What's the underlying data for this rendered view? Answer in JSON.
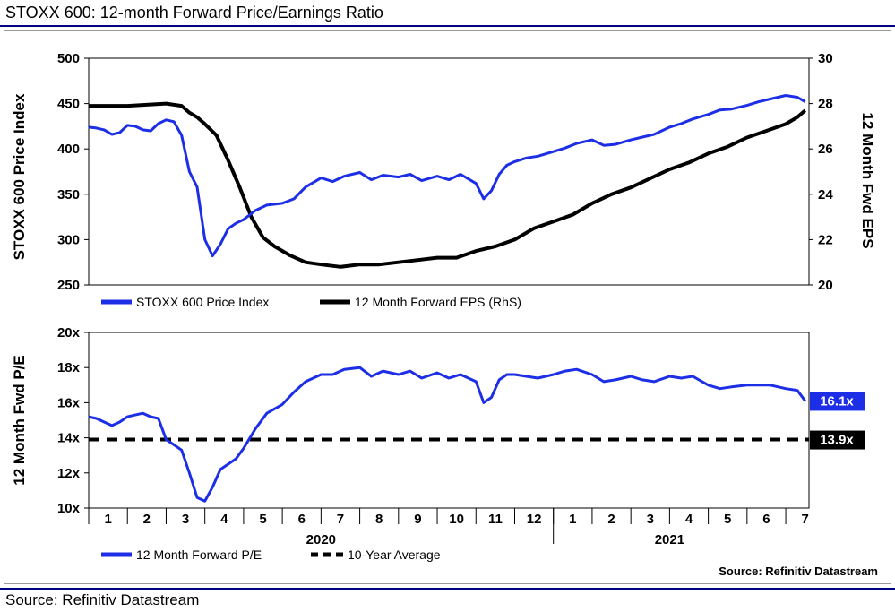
{
  "figure": {
    "title": "STOXX 600: 12-month Forward Price/Earnings Ratio",
    "source": "Source: Refinitiv Datastream",
    "inner_source": "Source: Refinitiv Datastream"
  },
  "colors": {
    "blue": "#1c2ee6",
    "black": "#000000",
    "rule": "#000080",
    "frame": "#999999"
  },
  "chart_data": [
    {
      "type": "line",
      "x_unit": "month index (0 = start of Jan 2020)",
      "y_left": {
        "label": "STOXX 600 Price Index",
        "ylim": [
          250,
          500
        ],
        "ticks": [
          "250",
          "300",
          "350",
          "400",
          "450",
          "500"
        ]
      },
      "y_right": {
        "label": "12 Month Fwd EPS",
        "ylim": [
          20,
          30
        ],
        "ticks": [
          "20",
          "22",
          "24",
          "26",
          "28",
          "30"
        ]
      },
      "grid": false,
      "legend": "bottom",
      "series": [
        {
          "name": "STOXX 600 Price Index",
          "axis": "left",
          "color": "#1c2ee6",
          "x": [
            0,
            0.2,
            0.4,
            0.6,
            0.8,
            1.0,
            1.2,
            1.4,
            1.6,
            1.8,
            2.0,
            2.2,
            2.4,
            2.6,
            2.8,
            3.0,
            3.2,
            3.4,
            3.6,
            3.8,
            4.0,
            4.3,
            4.6,
            5.0,
            5.3,
            5.6,
            6.0,
            6.3,
            6.6,
            7.0,
            7.3,
            7.6,
            8.0,
            8.3,
            8.6,
            9.0,
            9.3,
            9.6,
            10.0,
            10.2,
            10.4,
            10.6,
            10.8,
            11.0,
            11.3,
            11.6,
            12.0,
            12.3,
            12.6,
            13.0,
            13.3,
            13.6,
            14.0,
            14.3,
            14.6,
            15.0,
            15.3,
            15.6,
            16.0,
            16.3,
            16.6,
            17.0,
            17.3,
            17.6,
            18.0,
            18.3,
            18.5
          ],
          "values": [
            424,
            423,
            421,
            416,
            418,
            426,
            425,
            421,
            420,
            428,
            432,
            430,
            415,
            375,
            358,
            300,
            282,
            295,
            312,
            318,
            322,
            332,
            338,
            340,
            345,
            358,
            368,
            364,
            370,
            374,
            366,
            371,
            369,
            372,
            365,
            370,
            366,
            372,
            362,
            345,
            354,
            372,
            382,
            386,
            390,
            392,
            397,
            401,
            406,
            410,
            404,
            405,
            410,
            413,
            416,
            424,
            428,
            433,
            438,
            443,
            444,
            448,
            452,
            455,
            459,
            457,
            452
          ]
        },
        {
          "name": "12 Month Forward EPS (RhS)",
          "axis": "right",
          "color": "#000000",
          "x": [
            0,
            0.5,
            1.0,
            1.5,
            2.0,
            2.4,
            2.6,
            2.8,
            3.0,
            3.3,
            3.6,
            3.9,
            4.2,
            4.5,
            4.8,
            5.2,
            5.6,
            6.0,
            6.5,
            7.0,
            7.5,
            8.0,
            8.5,
            9.0,
            9.5,
            10.0,
            10.5,
            11.0,
            11.5,
            12.0,
            12.5,
            13.0,
            13.5,
            14.0,
            14.5,
            15.0,
            15.5,
            16.0,
            16.5,
            17.0,
            17.5,
            18.0,
            18.3,
            18.5
          ],
          "values": [
            27.9,
            27.9,
            27.9,
            27.95,
            28.0,
            27.9,
            27.6,
            27.4,
            27.1,
            26.6,
            25.5,
            24.3,
            23.0,
            22.1,
            21.7,
            21.3,
            21.0,
            20.9,
            20.8,
            20.9,
            20.9,
            21.0,
            21.1,
            21.2,
            21.2,
            21.5,
            21.7,
            22.0,
            22.5,
            22.8,
            23.1,
            23.6,
            24.0,
            24.3,
            24.7,
            25.1,
            25.4,
            25.8,
            26.1,
            26.5,
            26.8,
            27.1,
            27.4,
            27.7
          ]
        }
      ]
    },
    {
      "type": "line",
      "x_unit": "month index (0 = start of Jan 2020)",
      "y_left": {
        "label": "12 Month Fwd P/E",
        "ylim": [
          10,
          20
        ],
        "ticks": [
          "10x",
          "12x",
          "14x",
          "16x",
          "18x",
          "20x"
        ]
      },
      "x_ticks": [
        "1",
        "2",
        "3",
        "4",
        "5",
        "6",
        "7",
        "8",
        "9",
        "10",
        "11",
        "12",
        "1",
        "2",
        "3",
        "4",
        "5",
        "6",
        "7"
      ],
      "x_years": [
        "2020",
        "2021"
      ],
      "grid": false,
      "legend": "bottom",
      "series": [
        {
          "name": "12 Month Forward P/E",
          "color": "#1c2ee6",
          "x": [
            0,
            0.2,
            0.4,
            0.6,
            0.8,
            1.0,
            1.2,
            1.4,
            1.6,
            1.8,
            2.0,
            2.2,
            2.4,
            2.6,
            2.8,
            3.0,
            3.2,
            3.4,
            3.6,
            3.8,
            4.0,
            4.3,
            4.6,
            5.0,
            5.3,
            5.6,
            6.0,
            6.3,
            6.6,
            7.0,
            7.3,
            7.6,
            8.0,
            8.3,
            8.6,
            9.0,
            9.3,
            9.6,
            10.0,
            10.2,
            10.4,
            10.6,
            10.8,
            11.0,
            11.3,
            11.6,
            12.0,
            12.3,
            12.6,
            13.0,
            13.3,
            13.6,
            14.0,
            14.3,
            14.6,
            15.0,
            15.3,
            15.6,
            16.0,
            16.3,
            16.6,
            17.0,
            17.3,
            17.6,
            18.0,
            18.3,
            18.5
          ],
          "values": [
            15.2,
            15.1,
            14.9,
            14.7,
            14.9,
            15.2,
            15.3,
            15.4,
            15.2,
            15.1,
            13.9,
            13.6,
            13.3,
            12.0,
            10.6,
            10.4,
            11.2,
            12.2,
            12.5,
            12.8,
            13.4,
            14.5,
            15.4,
            15.9,
            16.6,
            17.2,
            17.6,
            17.6,
            17.9,
            18.0,
            17.5,
            17.8,
            17.6,
            17.8,
            17.4,
            17.7,
            17.4,
            17.6,
            17.2,
            16.0,
            16.3,
            17.3,
            17.6,
            17.6,
            17.5,
            17.4,
            17.6,
            17.8,
            17.9,
            17.6,
            17.2,
            17.3,
            17.5,
            17.3,
            17.2,
            17.5,
            17.4,
            17.5,
            17.0,
            16.8,
            16.9,
            17.0,
            17.0,
            17.0,
            16.8,
            16.7,
            16.1
          ]
        },
        {
          "name": "10-Year Average",
          "color": "#000000",
          "style": "dashed",
          "value": 13.9
        }
      ],
      "labels": {
        "current": "16.1x",
        "average": "13.9x"
      }
    }
  ]
}
